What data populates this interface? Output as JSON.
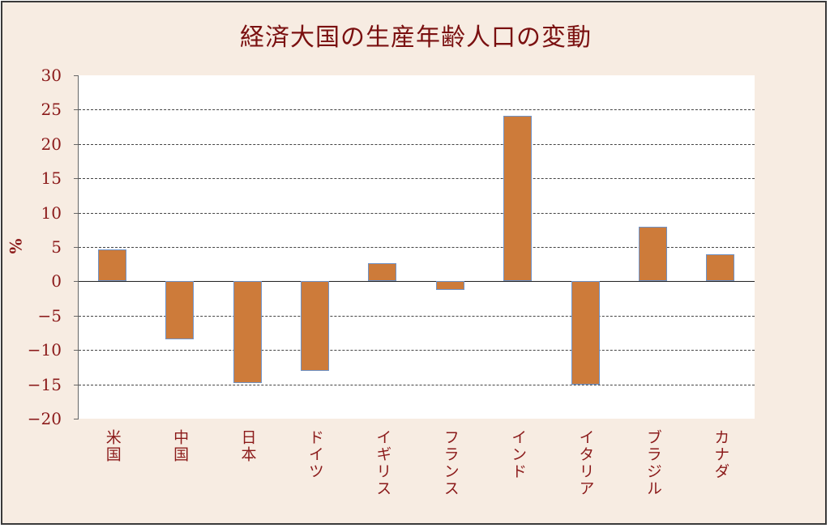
{
  "chart_data": {
    "type": "bar",
    "title": "経済大国の生産年齢人口の変動",
    "xlabel": "",
    "ylabel": "%",
    "ylim": [
      -20,
      30
    ],
    "yticks": [
      30,
      25,
      20,
      15,
      10,
      5,
      0,
      -5,
      -10,
      -15,
      -20
    ],
    "grid": true,
    "legend": null,
    "categories": [
      "米国",
      "中国",
      "日本",
      "ドイツ",
      "イギリス",
      "フランス",
      "インド",
      "イタリア",
      "ブラジル",
      "カナダ"
    ],
    "values": [
      4.6,
      -8.5,
      -14.8,
      -13.0,
      2.6,
      -1.2,
      24.1,
      -15.0,
      7.9,
      3.9
    ],
    "bar_color": "#cd7b3a",
    "bar_edge_color": "#6f93c8"
  },
  "colors": {
    "background": "#f7ece2",
    "text": "#8b1a1a",
    "title": "#7a1010"
  }
}
